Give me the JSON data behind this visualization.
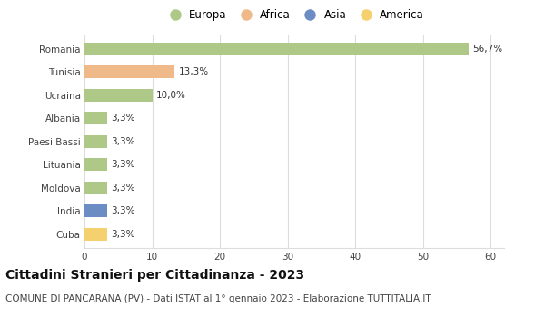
{
  "countries": [
    "Romania",
    "Tunisia",
    "Ucraina",
    "Albania",
    "Paesi Bassi",
    "Lituania",
    "Moldova",
    "India",
    "Cuba"
  ],
  "values": [
    56.7,
    13.3,
    10.0,
    3.3,
    3.3,
    3.3,
    3.3,
    3.3,
    3.3
  ],
  "labels": [
    "56,7%",
    "13,3%",
    "10,0%",
    "3,3%",
    "3,3%",
    "3,3%",
    "3,3%",
    "3,3%",
    "3,3%"
  ],
  "colors": [
    "#aec987",
    "#f0b989",
    "#aec987",
    "#aec987",
    "#aec987",
    "#aec987",
    "#aec987",
    "#6b8dc4",
    "#f5d06e"
  ],
  "legend_labels": [
    "Europa",
    "Africa",
    "Asia",
    "America"
  ],
  "legend_colors": [
    "#aec987",
    "#f0b989",
    "#6b8dc4",
    "#f5d06e"
  ],
  "title": "Cittadini Stranieri per Cittadinanza - 2023",
  "subtitle": "COMUNE DI PANCARANA (PV) - Dati ISTAT al 1° gennaio 2023 - Elaborazione TUTTITALIA.IT",
  "xlim": [
    0,
    62
  ],
  "xticks": [
    0,
    10,
    20,
    30,
    40,
    50,
    60
  ],
  "background_color": "#ffffff",
  "grid_color": "#dddddd",
  "bar_height": 0.55,
  "title_fontsize": 10,
  "subtitle_fontsize": 7.5,
  "label_fontsize": 7.5,
  "tick_fontsize": 7.5,
  "legend_fontsize": 8.5
}
